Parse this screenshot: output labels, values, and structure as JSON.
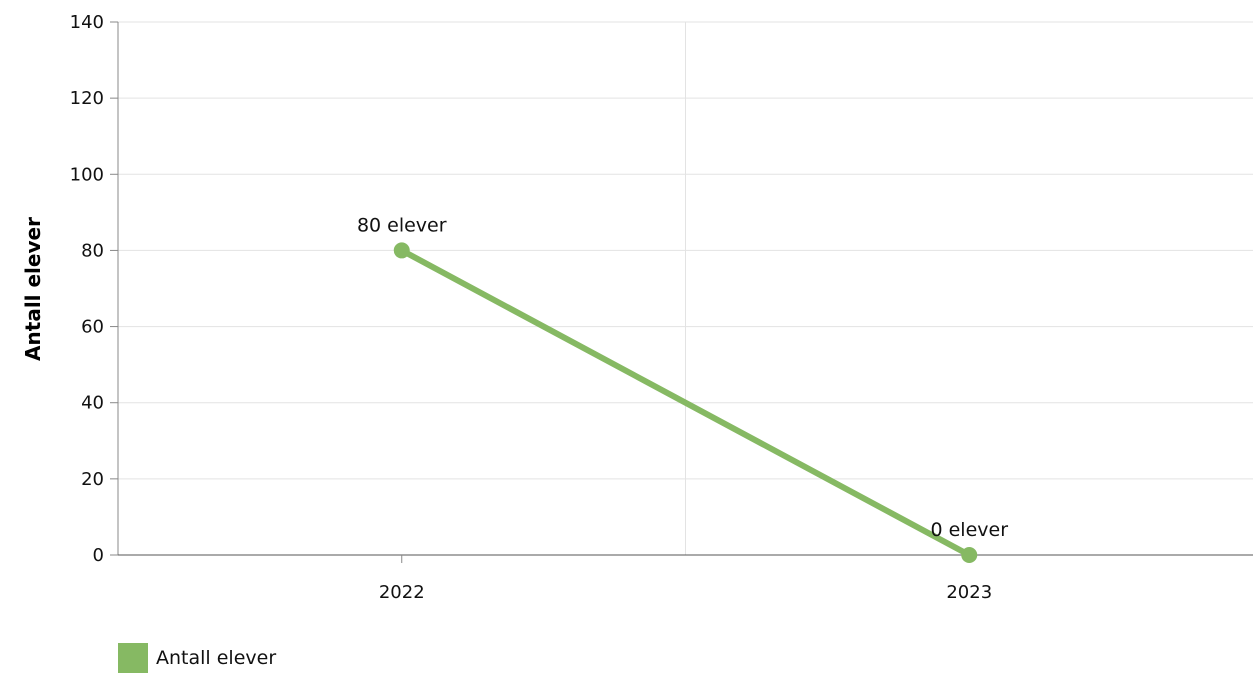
{
  "chart_data": {
    "type": "line",
    "title": "",
    "xlabel": "",
    "ylabel": "Antall elever",
    "categories": [
      "2022",
      "2023"
    ],
    "series": [
      {
        "name": "Antall elever",
        "values": [
          80,
          0
        ],
        "color": "#86b963",
        "data_labels": [
          "80 elever",
          "0 elever"
        ]
      }
    ],
    "ylim": [
      0,
      140
    ],
    "yticks": [
      0,
      20,
      40,
      60,
      80,
      100,
      120,
      140
    ],
    "ytick_labels": [
      "0",
      "20",
      "40",
      "60",
      "80",
      "100",
      "120",
      "140"
    ],
    "grid": true,
    "legend_position": "bottom-left"
  }
}
